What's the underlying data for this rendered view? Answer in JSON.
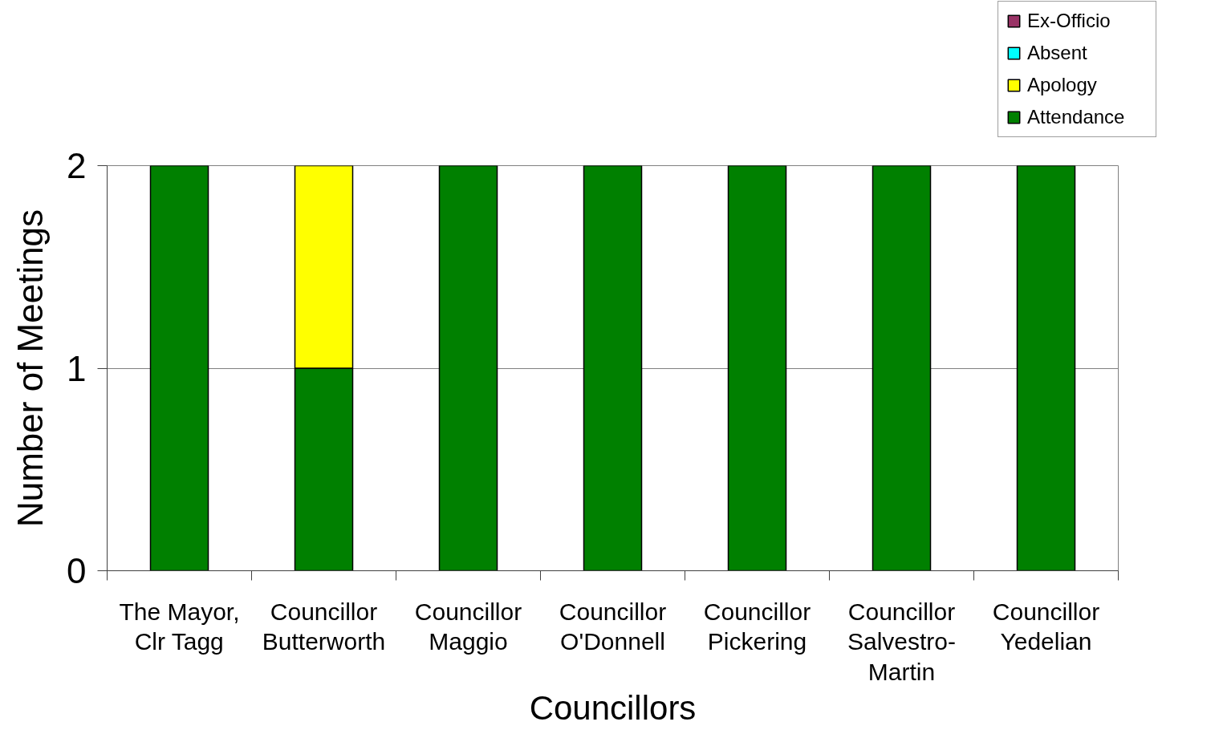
{
  "chart_data": {
    "type": "bar",
    "stacked": true,
    "xlabel": "Councillors",
    "ylabel": "Number of Meetings",
    "categories": [
      "The Mayor, Clr Tagg",
      "Councillor Butterworth",
      "Councillor Maggio",
      "Councillor O'Donnell",
      "Councillor Pickering",
      "Councillor Salvestro-Martin",
      "Councillor Yedelian"
    ],
    "series": [
      {
        "name": "Attendance",
        "color": "#008000",
        "values": [
          2,
          1,
          2,
          2,
          2,
          2,
          2
        ]
      },
      {
        "name": "Apology",
        "color": "#ffff00",
        "values": [
          null,
          1,
          null,
          null,
          null,
          null,
          null
        ]
      },
      {
        "name": "Absent",
        "color": "#00ffff",
        "values": [
          null,
          null,
          null,
          null,
          null,
          null,
          null
        ]
      },
      {
        "name": "Ex-Officio",
        "color": "#993366",
        "values": [
          null,
          null,
          null,
          null,
          null,
          null,
          null
        ]
      }
    ],
    "ylim": [
      0,
      2
    ],
    "yticks": [
      0,
      1,
      2
    ],
    "grid": "y",
    "legend": "top right"
  }
}
